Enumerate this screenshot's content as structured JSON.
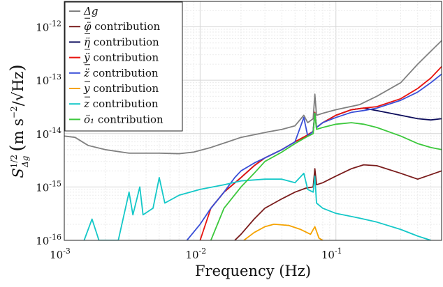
{
  "chart_data": {
    "type": "line",
    "xlabel": "Frequency (Hz)",
    "ylabel": "S_{Δg}^{1/2} (m s⁻²/√Hz)",
    "ylabel_main": "S",
    "ylabel_sub": "Δg",
    "ylabel_sup": "1/2",
    "ylabel_unit_m": "m s",
    "ylabel_unit_exp": "−2",
    "ylabel_unit_den": "/√Hz",
    "x_scale": "log",
    "y_scale": "log",
    "xlim": [
      0.001,
      0.6
    ],
    "ylim": [
      1e-16,
      3e-12
    ],
    "x_ticks": [
      {
        "value": 0.001,
        "base": "10",
        "exp": "-3"
      },
      {
        "value": 0.01,
        "base": "10",
        "exp": "-2"
      },
      {
        "value": 0.1,
        "base": "10",
        "exp": "-1"
      }
    ],
    "y_ticks": [
      {
        "value": 1e-16,
        "base": "10",
        "exp": "-16"
      },
      {
        "value": 1e-15,
        "base": "10",
        "exp": "-15"
      },
      {
        "value": 1e-14,
        "base": "10",
        "exp": "-14"
      },
      {
        "value": 1e-13,
        "base": "10",
        "exp": "-13"
      },
      {
        "value": 1e-12,
        "base": "10",
        "exp": "-12"
      }
    ],
    "grid": true,
    "legend_position": "top-left",
    "series": [
      {
        "name": "Δg",
        "color": "#808080",
        "points": [
          [
            0.001,
            9e-15
          ],
          [
            0.0012,
            8.5e-15
          ],
          [
            0.0015,
            6e-15
          ],
          [
            0.002,
            5e-15
          ],
          [
            0.003,
            4.3e-15
          ],
          [
            0.005,
            4.3e-15
          ],
          [
            0.007,
            4.2e-15
          ],
          [
            0.009,
            4.5e-15
          ],
          [
            0.012,
            5.5e-15
          ],
          [
            0.016,
            7e-15
          ],
          [
            0.02,
            8.5e-15
          ],
          [
            0.03,
            1.05e-14
          ],
          [
            0.04,
            1.2e-14
          ],
          [
            0.05,
            1.4e-14
          ],
          [
            0.058,
            2.2e-14
          ],
          [
            0.062,
            1.6e-14
          ],
          [
            0.068,
            1.9e-14
          ],
          [
            0.07,
            5.5e-14
          ],
          [
            0.072,
            2.2e-14
          ],
          [
            0.08,
            2.4e-14
          ],
          [
            0.1,
            2.8e-14
          ],
          [
            0.15,
            3.5e-14
          ],
          [
            0.2,
            5e-14
          ],
          [
            0.3,
            9e-14
          ],
          [
            0.4,
            2e-13
          ],
          [
            0.5,
            3.5e-13
          ],
          [
            0.6,
            5.5e-13
          ]
        ]
      },
      {
        "name": "ä̈φ contribution",
        "color": "#7a1c1c",
        "points": [
          [
            0.018,
            1e-16
          ],
          [
            0.02,
            1.3e-16
          ],
          [
            0.025,
            2.5e-16
          ],
          [
            0.03,
            4e-16
          ],
          [
            0.04,
            6e-16
          ],
          [
            0.05,
            8e-16
          ],
          [
            0.06,
            9.5e-16
          ],
          [
            0.068,
            1e-15
          ],
          [
            0.07,
            2.2e-15
          ],
          [
            0.072,
            1.1e-15
          ],
          [
            0.08,
            1.2e-15
          ],
          [
            0.1,
            1.6e-15
          ],
          [
            0.13,
            2.2e-15
          ],
          [
            0.16,
            2.6e-15
          ],
          [
            0.2,
            2.5e-15
          ],
          [
            0.3,
            1.8e-15
          ],
          [
            0.4,
            1.4e-15
          ],
          [
            0.5,
            1.7e-15
          ],
          [
            0.6,
            2e-15
          ]
        ]
      },
      {
        "name": "ä̈η contribution",
        "color": "#0d0d5c",
        "points": [
          [
            0.012,
            4e-16
          ],
          [
            0.015,
            8e-16
          ],
          [
            0.02,
            1.5e-15
          ],
          [
            0.025,
            2.5e-15
          ],
          [
            0.03,
            3.5e-15
          ],
          [
            0.04,
            5e-15
          ],
          [
            0.05,
            7e-15
          ],
          [
            0.06,
            9e-15
          ],
          [
            0.068,
            1.1e-14
          ],
          [
            0.07,
            2.5e-14
          ],
          [
            0.072,
            1.3e-14
          ],
          [
            0.08,
            1.6e-14
          ],
          [
            0.1,
            2.2e-14
          ],
          [
            0.13,
            2.8e-14
          ],
          [
            0.16,
            3e-14
          ],
          [
            0.2,
            2.7e-14
          ],
          [
            0.3,
            2.2e-14
          ],
          [
            0.4,
            1.9e-14
          ],
          [
            0.5,
            1.8e-14
          ],
          [
            0.6,
            1.9e-14
          ]
        ]
      },
      {
        "name": "ä̈y contribution",
        "color": "#e8140f",
        "points": [
          [
            0.01,
            1e-16
          ],
          [
            0.012,
            4e-16
          ],
          [
            0.015,
            8e-16
          ],
          [
            0.02,
            1.5e-15
          ],
          [
            0.025,
            2.5e-15
          ],
          [
            0.03,
            3.5e-15
          ],
          [
            0.04,
            5e-15
          ],
          [
            0.05,
            7e-15
          ],
          [
            0.06,
            9e-15
          ],
          [
            0.068,
            1.1e-14
          ],
          [
            0.07,
            2.5e-14
          ],
          [
            0.072,
            1.3e-14
          ],
          [
            0.08,
            1.6e-14
          ],
          [
            0.1,
            2.2e-14
          ],
          [
            0.13,
            2.8e-14
          ],
          [
            0.16,
            3e-14
          ],
          [
            0.2,
            3.2e-14
          ],
          [
            0.3,
            4.5e-14
          ],
          [
            0.4,
            7e-14
          ],
          [
            0.5,
            1.1e-13
          ],
          [
            0.6,
            1.8e-13
          ]
        ]
      },
      {
        "name": "ä̈z contribution",
        "color": "#3a4fd8",
        "points": [
          [
            0.008,
            1e-16
          ],
          [
            0.01,
            2e-16
          ],
          [
            0.012,
            4e-16
          ],
          [
            0.015,
            8e-16
          ],
          [
            0.018,
            1.5e-15
          ],
          [
            0.02,
            2e-15
          ],
          [
            0.025,
            2.8e-15
          ],
          [
            0.03,
            3.5e-15
          ],
          [
            0.04,
            5e-15
          ],
          [
            0.05,
            7e-15
          ],
          [
            0.058,
            2e-14
          ],
          [
            0.062,
            9e-15
          ],
          [
            0.068,
            1.1e-14
          ],
          [
            0.07,
            2.4e-14
          ],
          [
            0.072,
            1.3e-14
          ],
          [
            0.08,
            1.6e-14
          ],
          [
            0.1,
            2e-14
          ],
          [
            0.13,
            2.5e-14
          ],
          [
            0.16,
            2.7e-14
          ],
          [
            0.2,
            3e-14
          ],
          [
            0.3,
            4.2e-14
          ],
          [
            0.4,
            6e-14
          ],
          [
            0.5,
            9e-14
          ],
          [
            0.6,
            1.3e-13
          ]
        ]
      },
      {
        "name": "y contribution",
        "color": "#f5a300",
        "points": [
          [
            0.021,
            1e-16
          ],
          [
            0.025,
            1.4e-16
          ],
          [
            0.03,
            1.8e-16
          ],
          [
            0.035,
            2e-16
          ],
          [
            0.045,
            1.9e-16
          ],
          [
            0.055,
            1.6e-16
          ],
          [
            0.065,
            1.3e-16
          ],
          [
            0.07,
            1.8e-16
          ],
          [
            0.075,
            1.1e-16
          ],
          [
            0.08,
            1e-16
          ]
        ]
      },
      {
        "name": "z contribution",
        "color": "#14c8c8",
        "points": [
          [
            0.0014,
            1e-16
          ],
          [
            0.0016,
            2.5e-16
          ],
          [
            0.0018,
            1e-16
          ],
          [
            0.0025,
            1e-16
          ],
          [
            0.003,
            8e-16
          ],
          [
            0.0032,
            3e-16
          ],
          [
            0.0036,
            1e-15
          ],
          [
            0.0038,
            3e-16
          ],
          [
            0.0045,
            4e-16
          ],
          [
            0.005,
            1.5e-15
          ],
          [
            0.0055,
            5e-16
          ],
          [
            0.007,
            7e-16
          ],
          [
            0.01,
            9e-16
          ],
          [
            0.015,
            1.1e-15
          ],
          [
            0.02,
            1.3e-15
          ],
          [
            0.03,
            1.4e-15
          ],
          [
            0.04,
            1.4e-15
          ],
          [
            0.05,
            1.2e-15
          ],
          [
            0.058,
            1.8e-15
          ],
          [
            0.062,
            9e-16
          ],
          [
            0.068,
            8e-16
          ],
          [
            0.07,
            1.6e-15
          ],
          [
            0.072,
            5e-16
          ],
          [
            0.08,
            4e-16
          ],
          [
            0.1,
            3.2e-16
          ],
          [
            0.15,
            2.6e-16
          ],
          [
            0.2,
            2.2e-16
          ],
          [
            0.3,
            1.6e-16
          ],
          [
            0.4,
            1.2e-16
          ],
          [
            0.5,
            1e-16
          ]
        ]
      },
      {
        "name": "ö₁ contribution",
        "color": "#3cc83c",
        "points": [
          [
            0.012,
            1e-16
          ],
          [
            0.015,
            4e-16
          ],
          [
            0.02,
            1e-15
          ],
          [
            0.025,
            1.8e-15
          ],
          [
            0.03,
            3e-15
          ],
          [
            0.04,
            4.5e-15
          ],
          [
            0.05,
            6.5e-15
          ],
          [
            0.06,
            8.5e-15
          ],
          [
            0.068,
            1e-14
          ],
          [
            0.07,
            2.4e-14
          ],
          [
            0.072,
            1.2e-14
          ],
          [
            0.08,
            1.3e-14
          ],
          [
            0.1,
            1.5e-14
          ],
          [
            0.13,
            1.6e-14
          ],
          [
            0.16,
            1.5e-14
          ],
          [
            0.2,
            1.3e-14
          ],
          [
            0.3,
            9e-15
          ],
          [
            0.4,
            6.5e-15
          ],
          [
            0.5,
            5.5e-15
          ],
          [
            0.6,
            5e-15
          ]
        ]
      }
    ],
    "legend_labels": [
      {
        "sym": "Δg",
        "rest": ""
      },
      {
        "sym": "φ̈",
        "rest": " contribution"
      },
      {
        "sym": "η̈",
        "rest": " contribution"
      },
      {
        "sym": "ÿ",
        "rest": " contribution"
      },
      {
        "sym": "z̈",
        "rest": " contribution"
      },
      {
        "sym": "y",
        "rest": " contribution"
      },
      {
        "sym": "z",
        "rest": " contribution"
      },
      {
        "sym": "ö₁",
        "rest": " contribution"
      }
    ]
  }
}
